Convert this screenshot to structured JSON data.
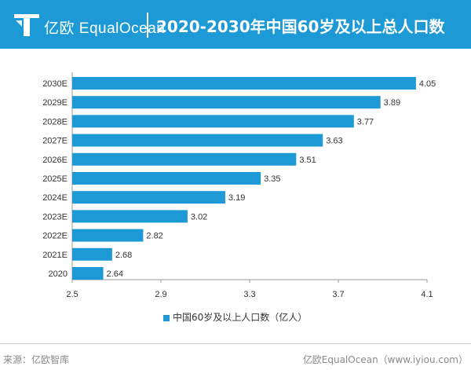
{
  "header": {
    "brand": "亿欧 EqualOcean",
    "title": "2020-2030年中国60岁及以上总人口数"
  },
  "colors": {
    "accent": "#1d9ad6"
  },
  "chart_data": {
    "type": "bar",
    "orientation": "horizontal",
    "categories": [
      "2020",
      "2021E",
      "2022E",
      "2023E",
      "2024E",
      "2025E",
      "2026E",
      "2027E",
      "2028E",
      "2029E",
      "2030E"
    ],
    "values": [
      2.64,
      2.68,
      2.82,
      3.02,
      3.19,
      3.35,
      3.51,
      3.63,
      3.77,
      3.89,
      4.05
    ],
    "value_labels": [
      "2.64",
      "2.68",
      "2.82",
      "3.02",
      "3.19",
      "3.35",
      "3.51",
      "3.63",
      "3.77",
      "3.89",
      "4.05"
    ],
    "xlim": [
      2.5,
      4.1
    ],
    "xticks": [
      "2.5",
      "2.9",
      "3.3",
      "3.7",
      "4.1"
    ],
    "series_name": "中国60岁及以上人口数（亿人）",
    "legend_position": "bottom"
  },
  "footer": {
    "source": "来源：亿欧智库",
    "credit": "亿欧EqualOcean（www.iyiou.com）"
  }
}
